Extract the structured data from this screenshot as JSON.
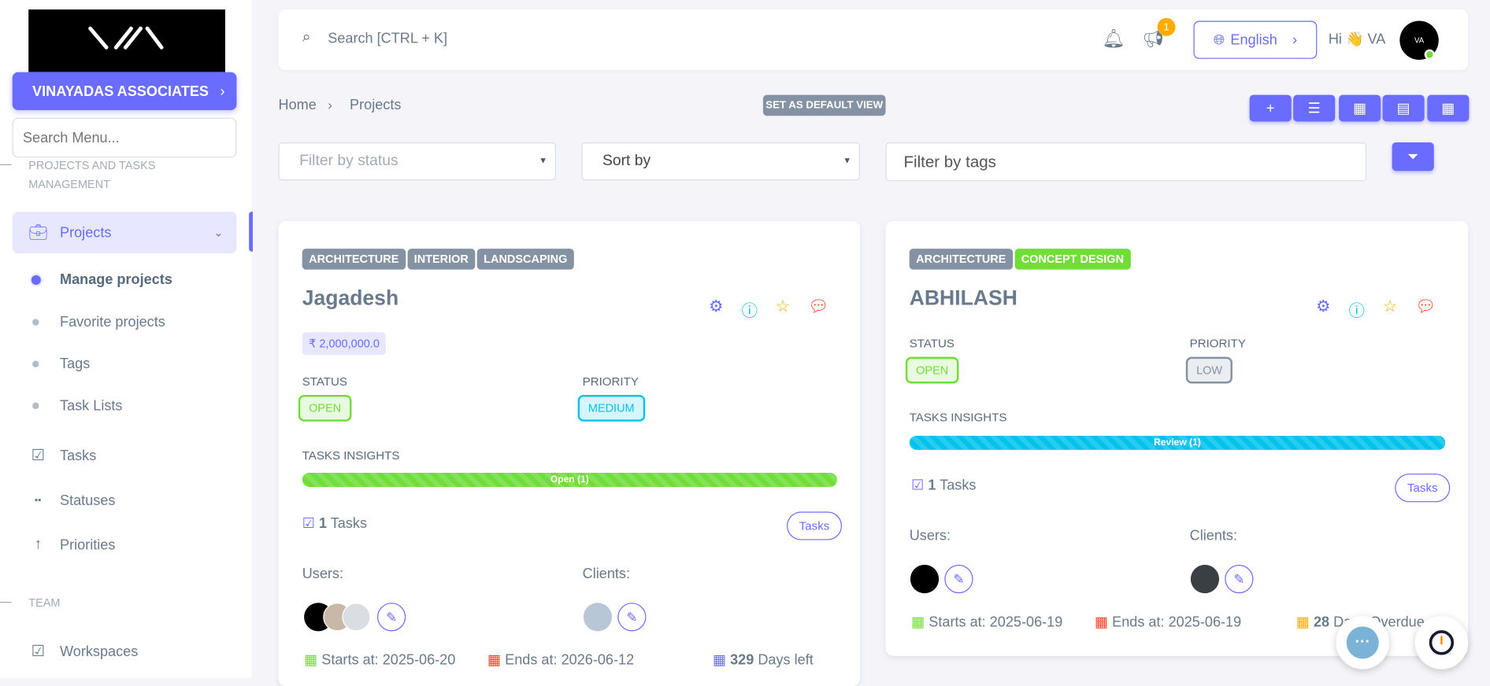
{
  "sidebar": {
    "logo_text": "VINAYADAS ASSOCIATES",
    "company": "VINAYADAS ASSOCIATES",
    "search_placeholder": "Search Menu...",
    "section1": "PROJECTS AND TASKS MANAGEMENT",
    "projects": "Projects",
    "sub": [
      "Manage projects",
      "Favorite projects",
      "Tags",
      "Task Lists"
    ],
    "tasks": "Tasks",
    "statuses": "Statuses",
    "priorities": "Priorities",
    "section2": "TEAM",
    "workspaces": "Workspaces"
  },
  "topbar": {
    "search_placeholder": "Search [CTRL + K]",
    "notif_count": "1",
    "language": "English",
    "greeting": "Hi 👋 VA"
  },
  "breadcrumb": {
    "home": "Home",
    "current": "Projects"
  },
  "default_view": "SET AS DEFAULT VIEW",
  "filters": {
    "status": "Filter by status",
    "sort": "Sort by",
    "tags": "Filter by tags"
  },
  "labels": {
    "status": "STATUS",
    "priority": "PRIORITY",
    "insights": "TASKS INSIGHTS",
    "tasks_word": "Tasks",
    "tasks_btn": "Tasks",
    "users": "Users:",
    "clients": "Clients:"
  },
  "projects": [
    {
      "tags": [
        "ARCHITECTURE",
        "INTERIOR",
        "LANDSCAPING"
      ],
      "title": "Jagadesh",
      "budget": "₹ 2,000,000.0",
      "status": "OPEN",
      "priority": "MEDIUM",
      "bar": "Open (1)",
      "bar_color": "#71dd37",
      "task_count": "1",
      "starts": "Starts at: 2025-06-20",
      "ends": "Ends at: 2026-06-12",
      "days_num": "329",
      "days_text": "Days left"
    },
    {
      "tags": [
        "ARCHITECTURE",
        "CONCEPT DESIGN"
      ],
      "title": "ABHILASH",
      "status": "OPEN",
      "priority": "LOW",
      "bar": "Review (1)",
      "bar_color": "#03c3ec",
      "task_count": "1",
      "starts": "Starts at: 2025-06-19",
      "ends": "Ends at: 2025-06-19",
      "days_num": "28",
      "days_text": "Days Overdue"
    }
  ],
  "colors": {
    "primary": "#696cff",
    "success": "#71dd37",
    "info": "#03c3ec",
    "warning": "#ffab00",
    "danger": "#ff3e1d"
  }
}
